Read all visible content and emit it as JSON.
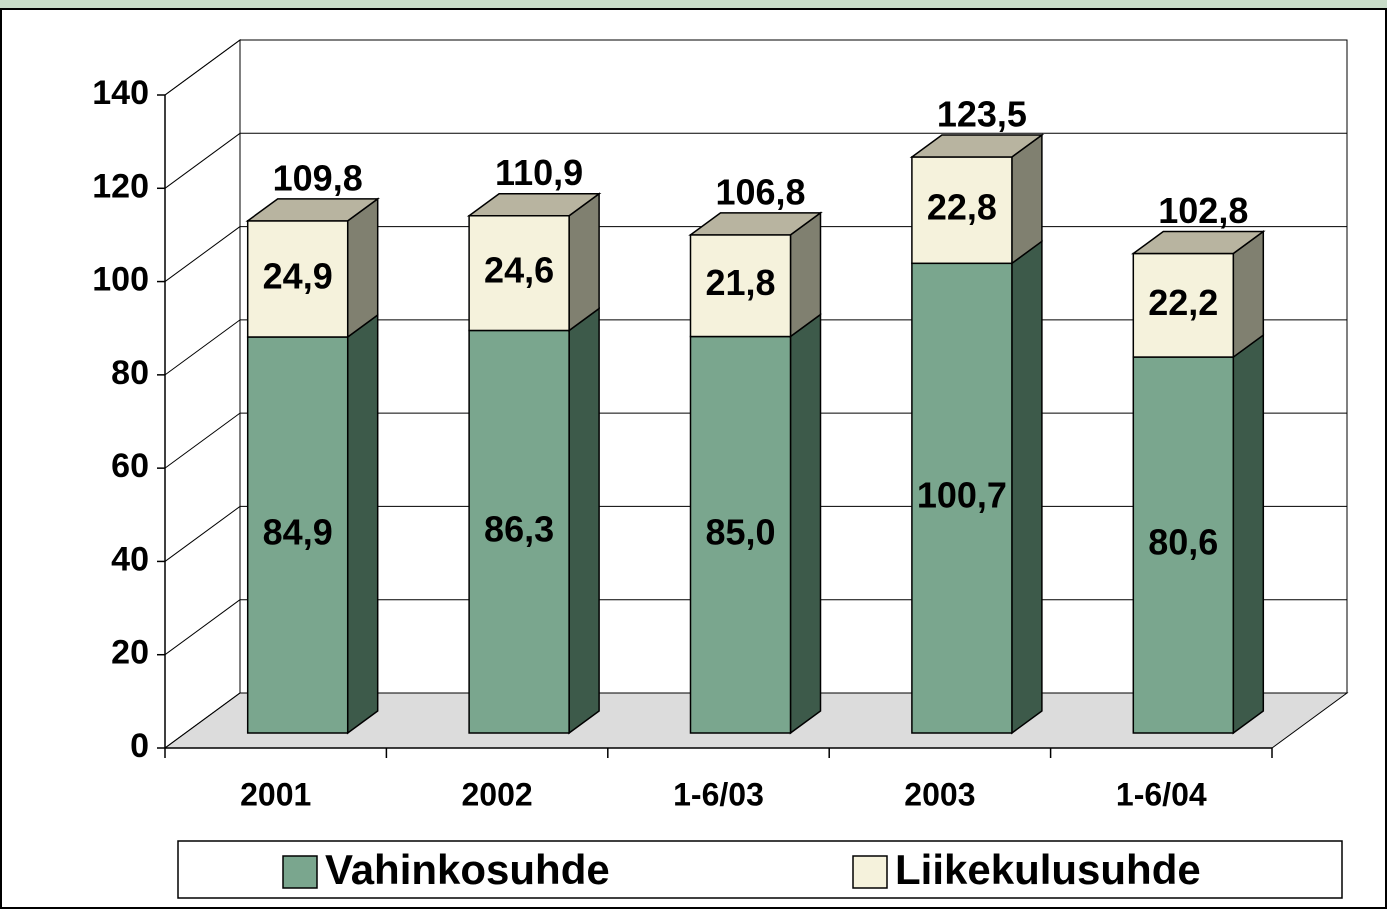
{
  "chart_data": {
    "type": "bar3d_stacked",
    "categories": [
      "2001",
      "2002",
      "1-6/03",
      "2003",
      "1-6/04"
    ],
    "series": [
      {
        "name": "Vahinkosuhde",
        "color": "#7aa68e",
        "values": [
          84.9,
          86.3,
          85.0,
          100.7,
          80.6
        ],
        "value_labels": [
          "84,9",
          "86,3",
          "85,0",
          "100,7",
          "80,6"
        ]
      },
      {
        "name": "Liikekulusuhde",
        "color": "#f5f2dc",
        "values": [
          24.9,
          24.6,
          21.8,
          22.8,
          22.2
        ],
        "value_labels": [
          "24,9",
          "24,6",
          "21,8",
          "22,8",
          "22,2"
        ]
      }
    ],
    "totals": [
      109.8,
      110.9,
      106.8,
      123.5,
      102.8
    ],
    "total_labels": [
      "109,8",
      "110,9",
      "106,8",
      "123,5",
      "102,8"
    ],
    "ylim": [
      0,
      140
    ],
    "yticks": [
      0,
      20,
      40,
      60,
      80,
      100,
      120,
      140
    ],
    "grid": true,
    "legend": "bottom"
  }
}
